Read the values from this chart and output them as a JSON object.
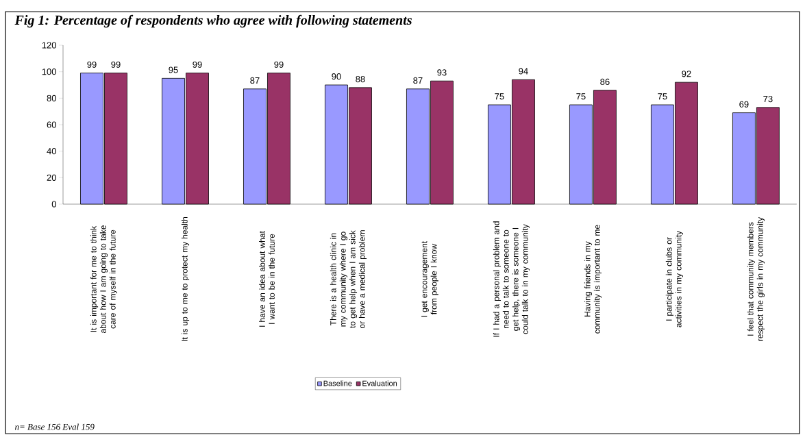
{
  "chart_data": {
    "type": "bar",
    "title": "Fig 1: Percentage of respondents who agree with following statements",
    "categories": [
      "It is important for me to think about how I am going to take care of myself in the future",
      "It is up to me to protect my health",
      "I have an idea about what I want to be in the future",
      "There is a health clinic in my community where I go to get help when I am sick  or have a medical problem",
      "I get encouragement from people I know",
      "If I had a personal problem and need to talk to someone to get help, there is someone I could talk to in my community",
      "Having friends in my community is important to me",
      "I participate in clubs or activities in my community",
      "I feel that community members respect the girls in my community"
    ],
    "series": [
      {
        "name": "Baseline",
        "color": "#9999ff",
        "values": [
          99,
          95,
          87,
          90,
          87,
          75,
          75,
          75,
          69
        ]
      },
      {
        "name": "Evaluation",
        "color": "#993366",
        "values": [
          99,
          99,
          99,
          88,
          93,
          94,
          86,
          92,
          73
        ]
      }
    ],
    "ylim": [
      0,
      120
    ],
    "yticks": [
      0,
      20,
      40,
      60,
      80,
      100,
      120
    ],
    "data_labels": true,
    "legend": "bottom",
    "grid": false,
    "annotations": [
      "n= Base 156 Eval 159"
    ]
  }
}
